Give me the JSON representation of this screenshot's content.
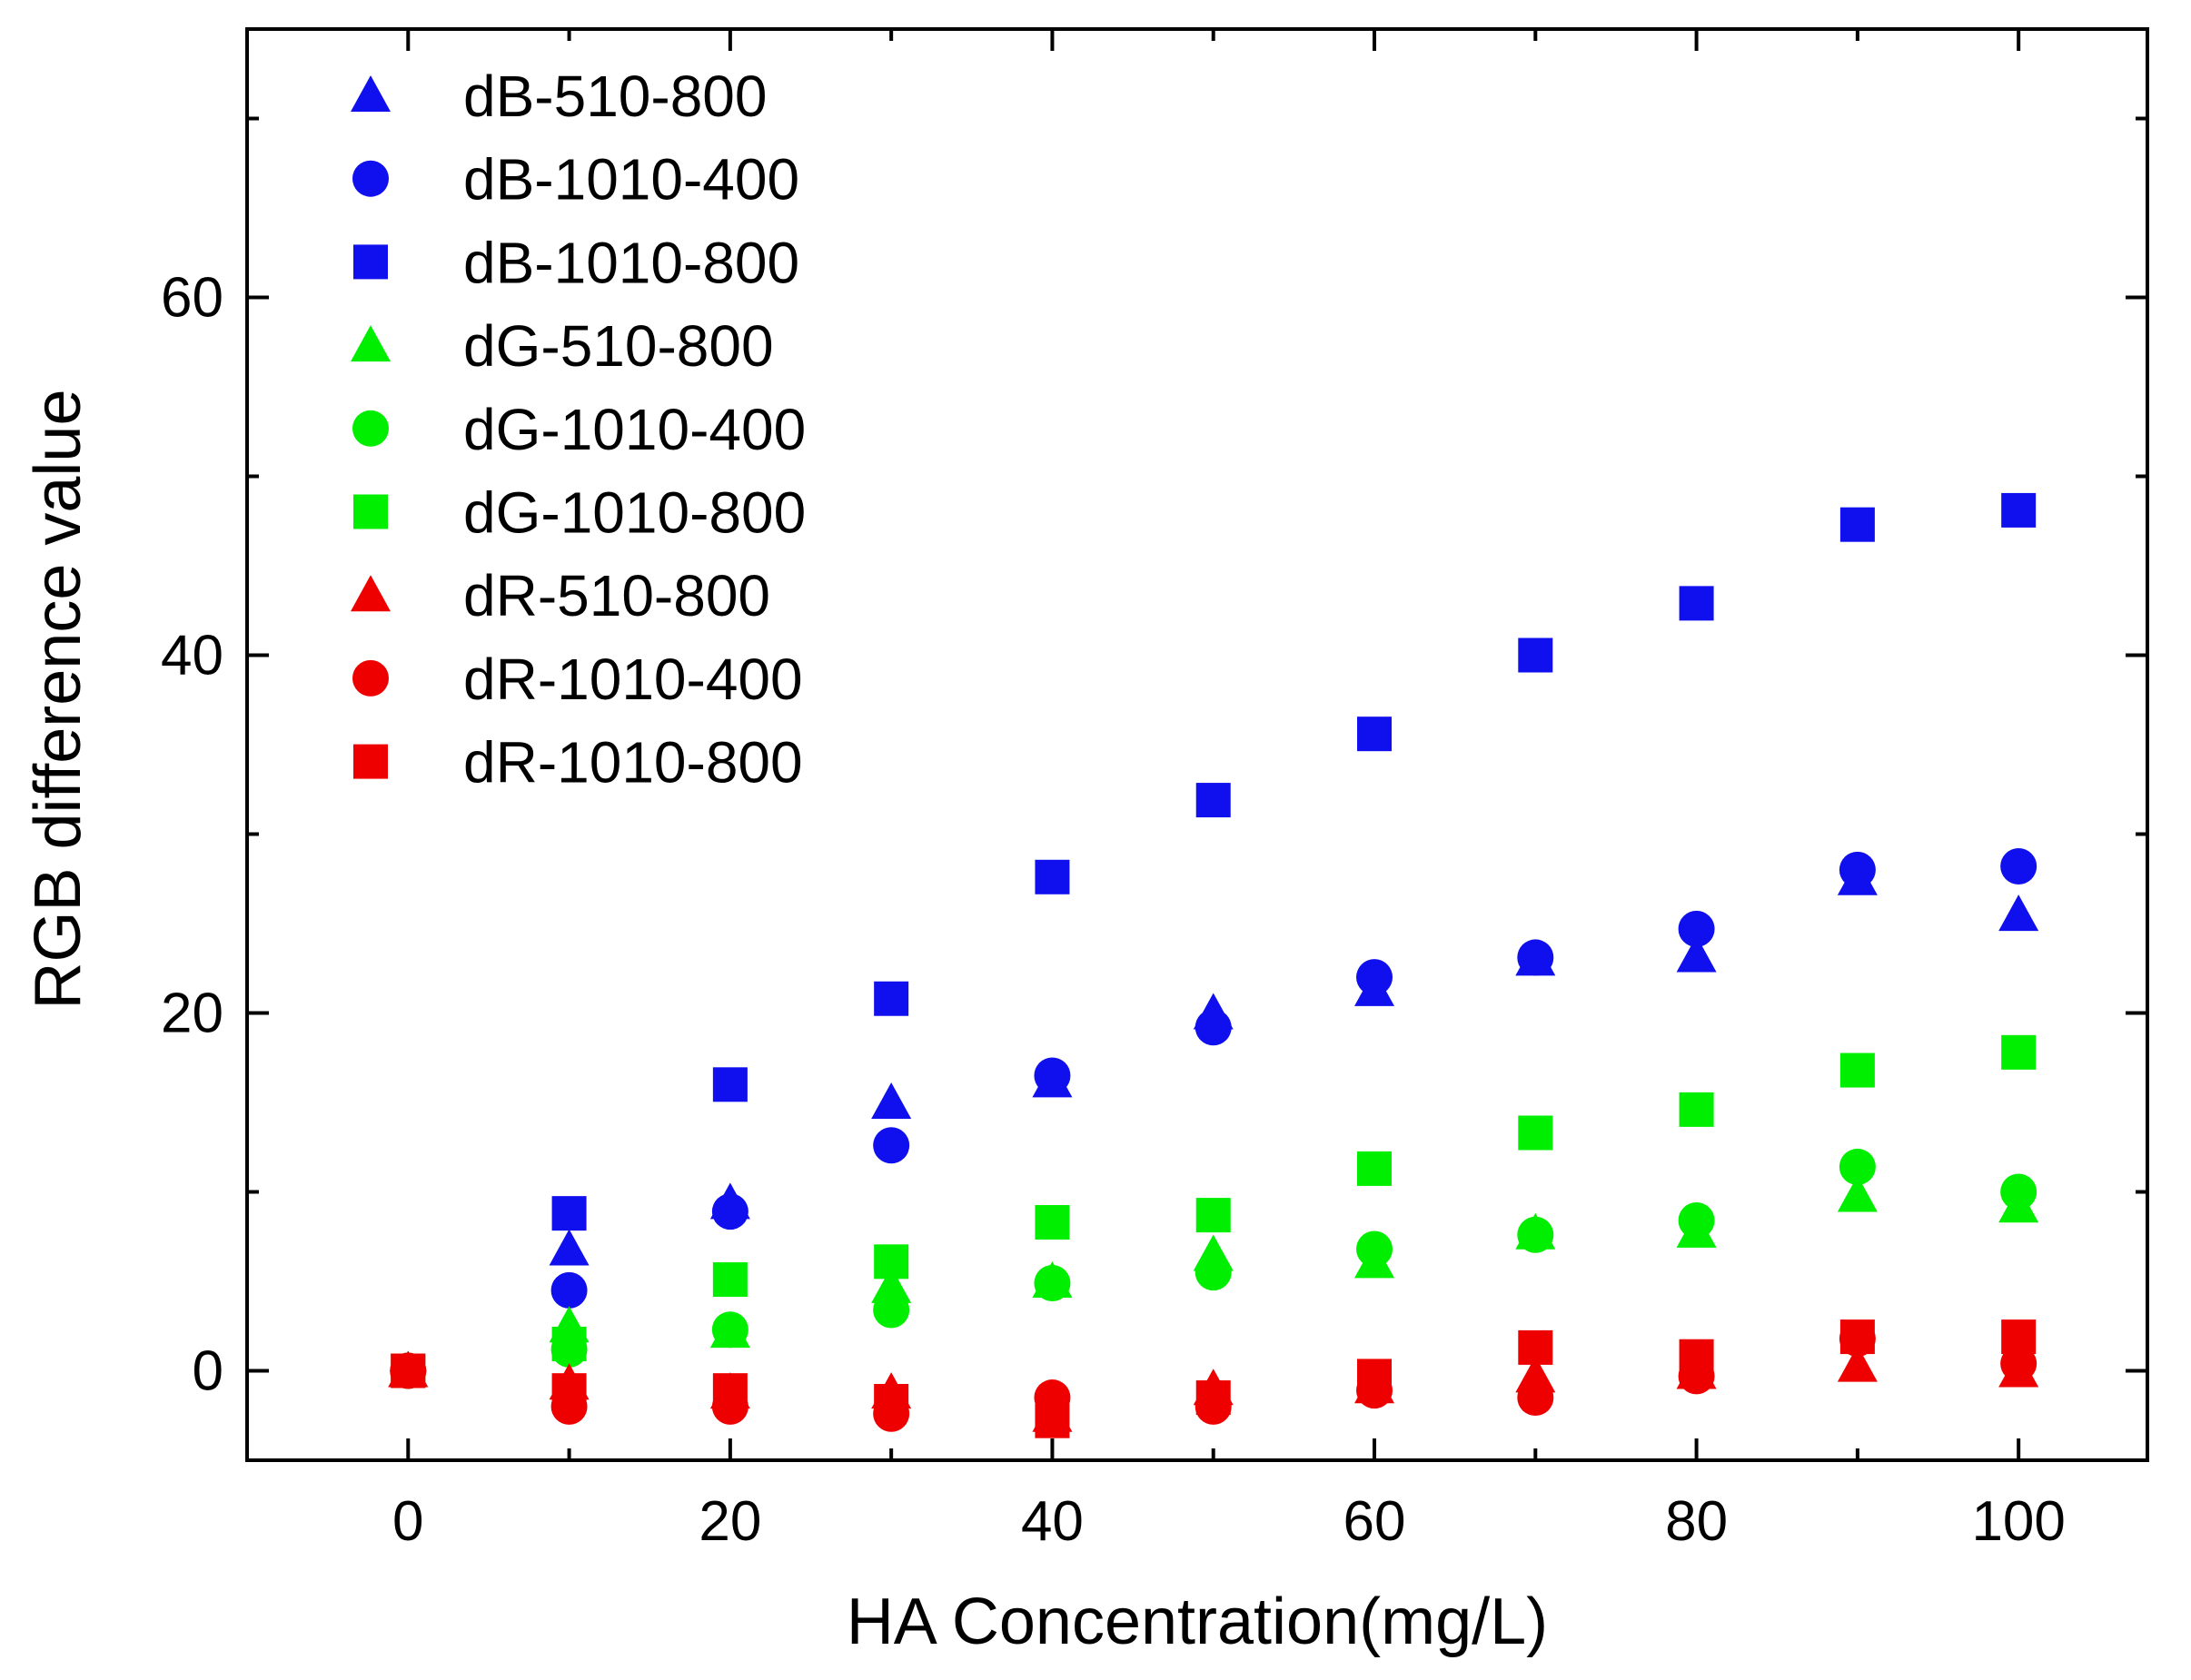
{
  "chart_data": {
    "type": "scatter",
    "title": "",
    "xlabel": "HA Concentration(mg/L)",
    "ylabel": "RGB difference value",
    "xlim": [
      -10,
      108
    ],
    "ylim": [
      -5,
      75
    ],
    "x_ticks": [
      0,
      20,
      40,
      60,
      80,
      100
    ],
    "y_ticks": [
      0,
      20,
      40,
      60
    ],
    "x_minor_ticks": [
      -10,
      10,
      30,
      50,
      70,
      90,
      108
    ],
    "y_minor_ticks": [
      10,
      30,
      50,
      70
    ],
    "grid": false,
    "legend_position": "top-left",
    "x": [
      0,
      10,
      20,
      30,
      40,
      50,
      60,
      70,
      80,
      90,
      100
    ],
    "series": [
      {
        "name": "dB-510-800",
        "marker": "triangle",
        "color": "#1010ee",
        "values": [
          0,
          6.8,
          9.4,
          15,
          16.2,
          20,
          21.3,
          23,
          23.2,
          27.5,
          25.5
        ]
      },
      {
        "name": "dB-1010-400",
        "marker": "circle",
        "color": "#1010ee",
        "values": [
          0,
          4.5,
          8.9,
          12.6,
          16.5,
          19.2,
          22,
          23.1,
          24.7,
          28,
          28.2
        ]
      },
      {
        "name": "dB-1010-800",
        "marker": "square",
        "color": "#1010ee",
        "values": [
          0,
          8.8,
          16,
          20.8,
          27.6,
          31.9,
          35.6,
          40,
          42.9,
          47.3,
          48.1
        ]
      },
      {
        "name": "dG-510-800",
        "marker": "triangle",
        "color": "#00ee00",
        "values": [
          0,
          2.5,
          2.2,
          4.7,
          5,
          6.5,
          6.1,
          7.7,
          7.8,
          9.8,
          9.2
        ]
      },
      {
        "name": "dG-1010-400",
        "marker": "circle",
        "color": "#00ee00",
        "values": [
          0,
          1.2,
          2.3,
          3.4,
          4.9,
          5.5,
          6.8,
          7.6,
          8.4,
          11.4,
          10
        ]
      },
      {
        "name": "dG-1010-800",
        "marker": "square",
        "color": "#00ee00",
        "values": [
          0,
          1.5,
          5.1,
          6.1,
          8.3,
          8.7,
          11.3,
          13.3,
          14.6,
          16.8,
          17.8
        ]
      },
      {
        "name": "dR-510-800",
        "marker": "triangle",
        "color": "#ee0000",
        "values": [
          0,
          -0.7,
          -1.2,
          -1.2,
          -2.5,
          -1,
          -0.9,
          -0.3,
          -0.1,
          0.3,
          0
        ]
      },
      {
        "name": "dR-1010-400",
        "marker": "circle",
        "color": "#ee0000",
        "values": [
          0,
          -2,
          -2,
          -2.4,
          -1.5,
          -2,
          -1.1,
          -1.5,
          -0.3,
          1.8,
          0.4
        ]
      },
      {
        "name": "dR-1010-800",
        "marker": "square",
        "color": "#ee0000",
        "values": [
          0,
          -1.1,
          -1.1,
          -1.7,
          -2.8,
          -1.5,
          -0.3,
          1.3,
          0.8,
          1.9,
          1.9
        ]
      }
    ]
  }
}
